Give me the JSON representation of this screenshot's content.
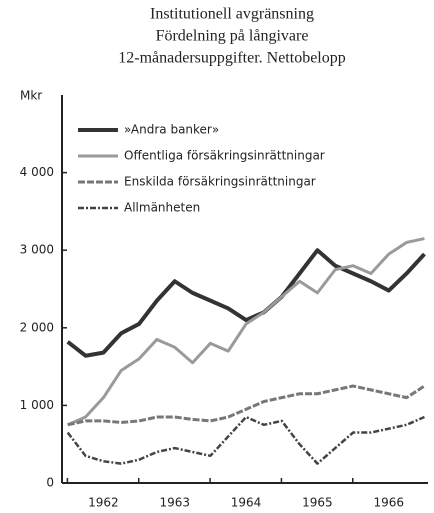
{
  "chart_data": {
    "type": "line",
    "title": [
      "Institutionell avgränsning",
      "Fördelning på långivare",
      "12-månadersuppgifter. Nettobelopp"
    ],
    "ylabel": "Mkr",
    "x": [
      1961.5,
      1961.75,
      1962,
      1962.25,
      1962.5,
      1962.75,
      1963,
      1963.25,
      1963.5,
      1963.75,
      1964,
      1964.25,
      1964.5,
      1964.75,
      1965,
      1965.25,
      1965.5,
      1965.75,
      1966,
      1966.25,
      1966.5
    ],
    "xlim": [
      1961.42,
      1966.55
    ],
    "xticks": [
      1962,
      1963,
      1964,
      1965,
      1966
    ],
    "ylim": [
      0,
      5000
    ],
    "yticks": [
      0,
      {
        "value": 1000,
        "label": "1 000"
      },
      {
        "value": 2000,
        "label": "2 000"
      },
      {
        "value": 3000,
        "label": "3 000"
      },
      {
        "value": 4000,
        "label": "4 000"
      }
    ],
    "series": [
      {
        "name": "»Andra banker»",
        "color": "#333333",
        "style": "solid-thick",
        "values": [
          1820,
          1640,
          1680,
          1930,
          2050,
          2350,
          2600,
          2450,
          2350,
          2250,
          2100,
          2200,
          2400,
          2700,
          3000,
          2800,
          2700,
          2600,
          2480,
          2700,
          2950
        ]
      },
      {
        "name": "Offentliga försäkringsinrättningar",
        "color": "#9a9a9a",
        "style": "solid",
        "values": [
          750,
          850,
          1100,
          1450,
          1600,
          1850,
          1750,
          1550,
          1800,
          1700,
          2050,
          2200,
          2400,
          2600,
          2450,
          2750,
          2800,
          2700,
          2950,
          3100,
          3150
        ]
      },
      {
        "name": "Enskilda försäkringsinrättningar",
        "color": "#777777",
        "style": "dashed",
        "values": [
          750,
          800,
          800,
          780,
          800,
          850,
          850,
          820,
          800,
          850,
          950,
          1050,
          1100,
          1150,
          1150,
          1200,
          1250,
          1200,
          1150,
          1100,
          1250
        ]
      },
      {
        "name": "Allmänheten",
        "color": "#444444",
        "style": "dashdot",
        "values": [
          650,
          350,
          280,
          250,
          300,
          400,
          450,
          400,
          350,
          600,
          850,
          750,
          800,
          500,
          250,
          450,
          650,
          650,
          700,
          750,
          850
        ]
      }
    ]
  }
}
